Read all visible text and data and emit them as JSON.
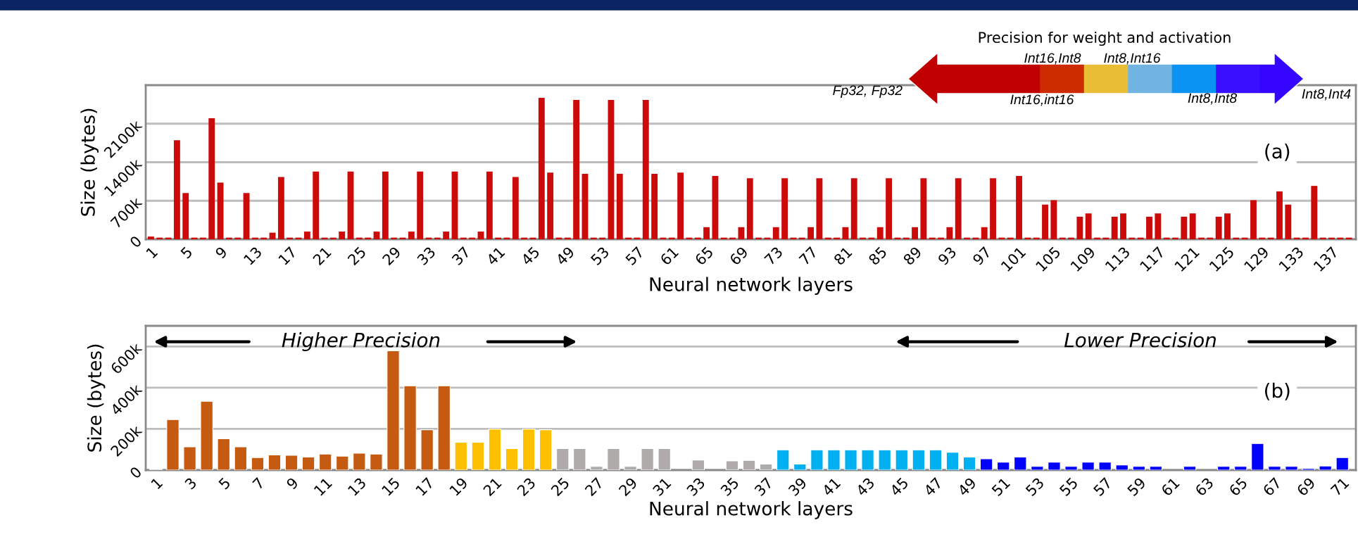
{
  "chart_data": [
    {
      "type": "bar",
      "xlabel": "Neural network layers",
      "ylabel": "Size (bytes)",
      "color": "#cc0a0a",
      "grid": "y",
      "ylim": [
        0,
        2800000
      ],
      "yticks": [
        0,
        {
          "value": 700000,
          "label": "700k"
        },
        {
          "value": 1400000,
          "label": "1400k"
        },
        {
          "value": 2100000,
          "label": "2100k"
        }
      ],
      "categories": [
        "1",
        null,
        null,
        null,
        "5",
        null,
        null,
        null,
        "9",
        null,
        null,
        null,
        "13",
        null,
        null,
        null,
        "17",
        null,
        null,
        null,
        "21",
        null,
        null,
        null,
        "25",
        null,
        null,
        null,
        "29",
        null,
        null,
        null,
        "33",
        null,
        null,
        null,
        "37",
        null,
        null,
        null,
        "41",
        null,
        null,
        null,
        "45",
        null,
        null,
        null,
        "49",
        null,
        null,
        null,
        "53",
        null,
        null,
        null,
        "57",
        null,
        null,
        null,
        "61",
        null,
        null,
        null,
        "65",
        null,
        null,
        null,
        "69",
        null,
        null,
        null,
        "73",
        null,
        null,
        null,
        "77",
        null,
        null,
        null,
        "81",
        null,
        null,
        null,
        "85",
        null,
        null,
        null,
        "89",
        null,
        null,
        null,
        "93",
        null,
        null,
        null,
        "97",
        null,
        null,
        null,
        "101",
        null,
        null,
        null,
        "105",
        null,
        null,
        null,
        "109",
        null,
        null,
        null,
        "113",
        null,
        null,
        null,
        "117",
        null,
        null,
        null,
        "121",
        null,
        null,
        null,
        "125",
        null,
        null,
        null,
        "129",
        null,
        null,
        null,
        "133",
        null,
        null,
        null,
        "137",
        null,
        null
      ],
      "values": [
        50000,
        30000,
        30000,
        1800000,
        840000,
        30000,
        30000,
        2200000,
        1030000,
        30000,
        30000,
        840000,
        30000,
        30000,
        120000,
        1130000,
        30000,
        30000,
        140000,
        1230000,
        30000,
        30000,
        140000,
        1230000,
        30000,
        30000,
        140000,
        1230000,
        30000,
        30000,
        140000,
        1230000,
        30000,
        30000,
        140000,
        1230000,
        30000,
        30000,
        140000,
        1230000,
        30000,
        30000,
        1130000,
        30000,
        30000,
        2570000,
        1210000,
        30000,
        30000,
        2530000,
        1190000,
        30000,
        30000,
        2530000,
        1190000,
        30000,
        30000,
        2530000,
        1190000,
        30000,
        30000,
        1210000,
        30000,
        30000,
        220000,
        1150000,
        30000,
        30000,
        220000,
        1110000,
        30000,
        30000,
        220000,
        1110000,
        30000,
        30000,
        220000,
        1110000,
        30000,
        30000,
        220000,
        1110000,
        30000,
        30000,
        220000,
        1110000,
        30000,
        30000,
        220000,
        1110000,
        30000,
        30000,
        220000,
        1110000,
        30000,
        30000,
        220000,
        1110000,
        30000,
        30000,
        1150000,
        30000,
        30000,
        630000,
        710000,
        30000,
        30000,
        410000,
        470000,
        30000,
        30000,
        410000,
        470000,
        30000,
        30000,
        410000,
        470000,
        30000,
        30000,
        410000,
        470000,
        30000,
        30000,
        410000,
        470000,
        30000,
        30000,
        710000,
        30000,
        30000,
        870000,
        630000,
        30000,
        30000,
        970000,
        30000,
        30000,
        30000,
        30000
      ],
      "annotations": [
        "(a)",
        "Precision for weight and activation",
        "Fp32, Fp32",
        "Int16,Int8",
        "Int8,Int16",
        "Int16,int16",
        "Int8,Int8",
        "Int8,Int4"
      ]
    },
    {
      "type": "bar",
      "xlabel": "Neural network layers",
      "ylabel": "Size (bytes)",
      "grid": "y",
      "ylim": [
        0,
        700000
      ],
      "yticks": [
        0,
        {
          "value": 200000,
          "label": "200k"
        },
        {
          "value": 400000,
          "label": "400k"
        },
        {
          "value": 600000,
          "label": "600k"
        }
      ],
      "categories": [
        "1",
        null,
        "3",
        null,
        "5",
        null,
        "7",
        null,
        "9",
        null,
        "11",
        null,
        "13",
        null,
        "15",
        null,
        "17",
        null,
        "19",
        null,
        "21",
        null,
        "23",
        null,
        "25",
        null,
        "27",
        null,
        "29",
        null,
        "31",
        null,
        "33",
        null,
        "35",
        null,
        "37",
        null,
        "39",
        null,
        "41",
        null,
        "43",
        null,
        "45",
        null,
        "47",
        null,
        "49",
        null,
        "51",
        null,
        "53",
        null,
        "55",
        null,
        "57",
        null,
        "59",
        null,
        "61",
        null,
        "63",
        null,
        "65",
        null,
        "67",
        null,
        "69",
        null,
        "71"
      ],
      "values": [
        5000,
        245000,
        113000,
        334000,
        152000,
        113000,
        61000,
        74000,
        72000,
        63000,
        78000,
        68000,
        82000,
        78000,
        579000,
        409000,
        196000,
        409000,
        135000,
        135000,
        199000,
        104000,
        199000,
        196000,
        104000,
        104000,
        18000,
        104000,
        18000,
        104000,
        104000,
        null,
        49000,
        null,
        45000,
        47000,
        29000,
        98000,
        29000,
        98000,
        98000,
        98000,
        98000,
        98000,
        98000,
        98000,
        98000,
        86000,
        63000,
        55000,
        39000,
        63000,
        18000,
        39000,
        18000,
        39000,
        39000,
        25000,
        18000,
        18000,
        null,
        18000,
        null,
        18000,
        18000,
        129000,
        18000,
        18000,
        8000,
        20000,
        61000
      ],
      "colors": [
        "#afabab",
        "#c55a11",
        "#c55a11",
        "#c55a11",
        "#c55a11",
        "#c55a11",
        "#c55a11",
        "#c55a11",
        "#c55a11",
        "#c55a11",
        "#c55a11",
        "#c55a11",
        "#c55a11",
        "#c55a11",
        "#c55a11",
        "#c55a11",
        "#c55a11",
        "#c55a11",
        "#ffc000",
        "#ffc000",
        "#ffc000",
        "#ffc000",
        "#ffc000",
        "#ffc000",
        "#afabab",
        "#afabab",
        "#afabab",
        "#afabab",
        "#afabab",
        "#afabab",
        "#afabab",
        "#afabab",
        "#afabab",
        "#afabab",
        "#afabab",
        "#afabab",
        "#afabab",
        "#00b0f0",
        "#00b0f0",
        "#00b0f0",
        "#00b0f0",
        "#00b0f0",
        "#00b0f0",
        "#00b0f0",
        "#00b0f0",
        "#00b0f0",
        "#00b0f0",
        "#00b0f0",
        "#00b0f0",
        "#0000ff",
        "#0000ff",
        "#0000ff",
        "#0000ff",
        "#0000ff",
        "#0000ff",
        "#0000ff",
        "#0000ff",
        "#0000ff",
        "#0000ff",
        "#0000ff",
        "#0000ff",
        "#0000ff",
        "#0000ff",
        "#0000ff",
        "#0000ff",
        "#0000ff",
        "#0000ff",
        "#0000ff",
        "#0000ff",
        "#0000ff",
        "#0000ff"
      ],
      "annotations": [
        "Higher Precision",
        "Lower Precision",
        "(b)"
      ]
    }
  ]
}
